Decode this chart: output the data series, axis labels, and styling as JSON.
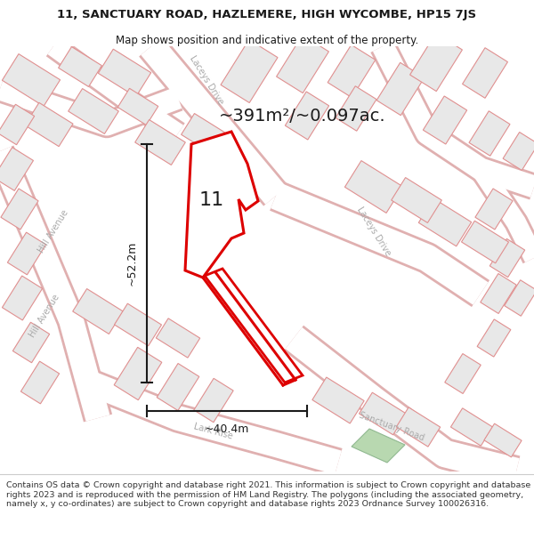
{
  "title_line1": "11, SANCTUARY ROAD, HAZLEMERE, HIGH WYCOMBE, HP15 7JS",
  "title_line2": "Map shows position and indicative extent of the property.",
  "footer_text": "Contains OS data © Crown copyright and database right 2021. This information is subject to Crown copyright and database rights 2023 and is reproduced with the permission of HM Land Registry. The polygons (including the associated geometry, namely x, y co-ordinates) are subject to Crown copyright and database rights 2023 Ordnance Survey 100026316.",
  "area_label": "~391m²/~0.097ac.",
  "dim_width": "~40.4m",
  "dim_height": "~52.2m",
  "property_number": "11",
  "map_bg": "#ffffff",
  "building_fill": "#e8e8e8",
  "building_stroke": "#e09090",
  "road_outline": "#e0b0b0",
  "property_color": "#dd0000",
  "dimension_color": "#1a1a1a",
  "title_color": "#1a1a1a",
  "street_label_color": "#aaaaaa",
  "green_fill": "#b8d8b0",
  "green_stroke": "#90b890",
  "figsize": [
    6.0,
    6.25
  ],
  "dpi": 100,
  "title_fontsize": 9.5,
  "subtitle_fontsize": 8.5,
  "area_fontsize": 14,
  "dim_fontsize": 9,
  "num_fontsize": 16,
  "street_fontsize": 7,
  "footer_fontsize": 6.8
}
